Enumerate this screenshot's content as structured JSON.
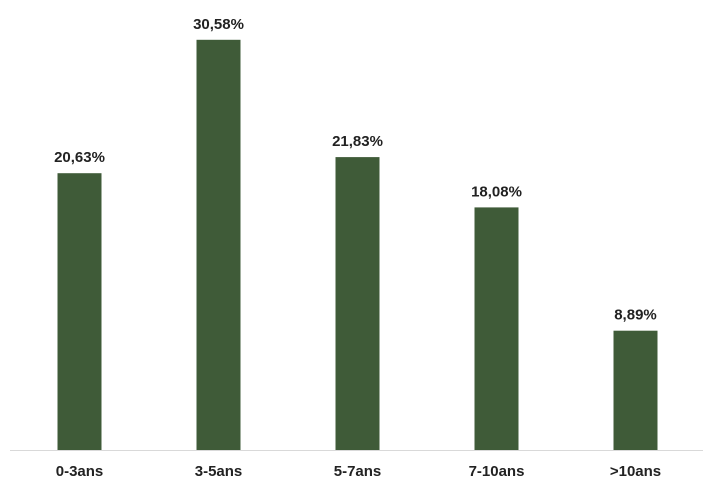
{
  "chart_data": {
    "type": "bar",
    "categories": [
      "0-3ans",
      "3-5ans",
      "5-7ans",
      "7-10ans",
      ">10ans"
    ],
    "values": [
      20.63,
      30.58,
      21.83,
      18.08,
      8.89
    ],
    "data_labels": [
      "20,63%",
      "30,58%",
      "21,83%",
      "18,08%",
      "8,89%"
    ],
    "title": "",
    "xlabel": "",
    "ylabel": "",
    "ylim": [
      0,
      32.5
    ],
    "grid": false,
    "legend": "none",
    "bar_color": "#3F5B38",
    "axis_color": "#D9D9D9"
  }
}
